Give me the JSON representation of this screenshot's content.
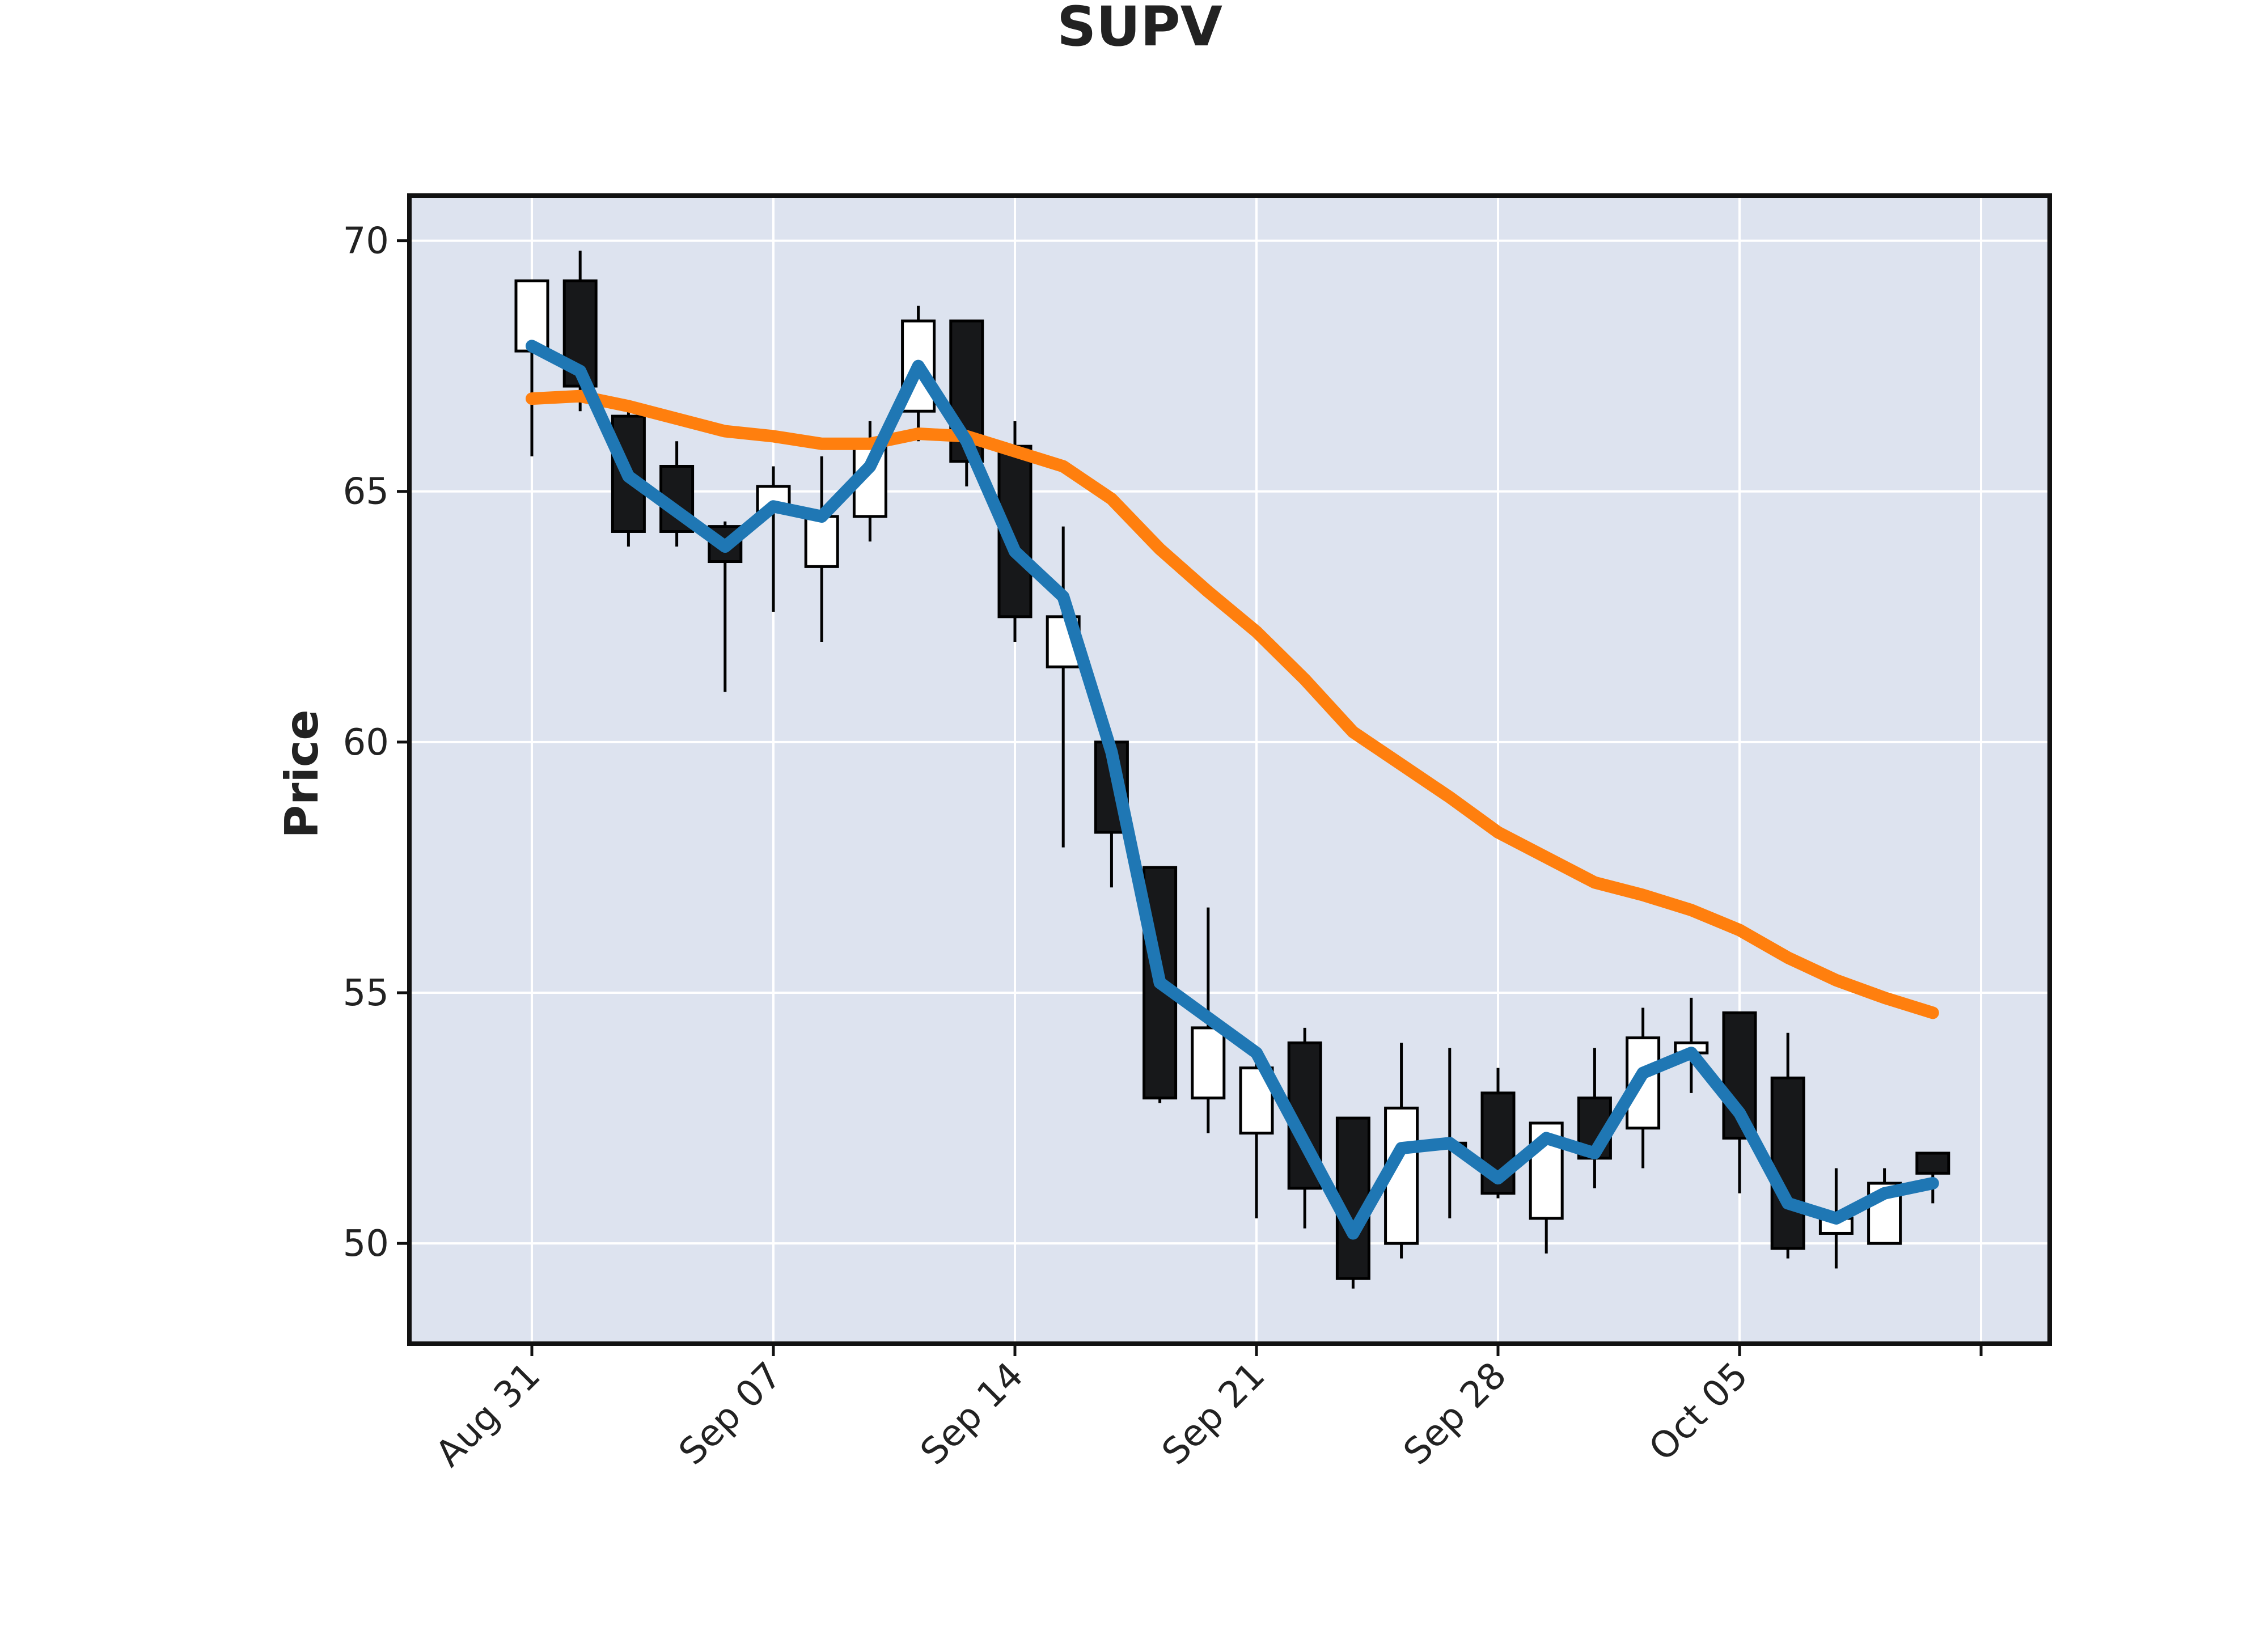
{
  "chart_data": {
    "type": "candlestick",
    "title": "SUPV",
    "ylabel": "Price",
    "xlabel": "",
    "ylim": [
      48.0,
      70.9
    ],
    "yticks": [
      50,
      55,
      60,
      65,
      70
    ],
    "grid": true,
    "legend": "none",
    "xtick_labels": [
      {
        "index": 0,
        "label": "Aug 31"
      },
      {
        "index": 5,
        "label": "Sep 07"
      },
      {
        "index": 10,
        "label": "Sep 14"
      },
      {
        "index": 15,
        "label": "Sep 21"
      },
      {
        "index": 20,
        "label": "Sep 28"
      },
      {
        "index": 25,
        "label": "Oct 05"
      },
      {
        "index": 30,
        "label": ""
      }
    ],
    "candles": [
      {
        "date": "Aug 31",
        "open": 67.8,
        "high": 69.2,
        "low": 65.7,
        "close": 69.2
      },
      {
        "date": "Sep 01",
        "open": 69.2,
        "high": 69.8,
        "low": 66.6,
        "close": 67.1
      },
      {
        "date": "Sep 02",
        "open": 66.5,
        "high": 66.7,
        "low": 63.9,
        "close": 64.2
      },
      {
        "date": "Sep 03",
        "open": 65.5,
        "high": 66.0,
        "low": 63.9,
        "close": 64.2
      },
      {
        "date": "Sep 04",
        "open": 64.3,
        "high": 64.4,
        "low": 61.0,
        "close": 63.6
      },
      {
        "date": "Sep 07",
        "open": 64.6,
        "high": 65.5,
        "low": 62.6,
        "close": 65.1
      },
      {
        "date": "Sep 08",
        "open": 63.5,
        "high": 65.7,
        "low": 62.0,
        "close": 64.5
      },
      {
        "date": "Sep 09",
        "open": 64.5,
        "high": 66.4,
        "low": 64.0,
        "close": 66.0
      },
      {
        "date": "Sep 10",
        "open": 66.6,
        "high": 68.7,
        "low": 66.0,
        "close": 68.4
      },
      {
        "date": "Sep 11",
        "open": 68.4,
        "high": 68.4,
        "low": 65.1,
        "close": 65.6
      },
      {
        "date": "Sep 14",
        "open": 65.9,
        "high": 66.4,
        "low": 62.0,
        "close": 62.5
      },
      {
        "date": "Sep 15",
        "open": 61.5,
        "high": 64.3,
        "low": 57.9,
        "close": 62.5
      },
      {
        "date": "Sep 16",
        "open": 60.0,
        "high": 60.0,
        "low": 57.1,
        "close": 58.2
      },
      {
        "date": "Sep 17",
        "open": 57.5,
        "high": 57.5,
        "low": 52.8,
        "close": 52.9
      },
      {
        "date": "Sep 18",
        "open": 52.9,
        "high": 56.7,
        "low": 52.2,
        "close": 54.3
      },
      {
        "date": "Sep 21",
        "open": 52.2,
        "high": 53.6,
        "low": 50.5,
        "close": 53.5
      },
      {
        "date": "Sep 22",
        "open": 54.0,
        "high": 54.3,
        "low": 50.3,
        "close": 51.1
      },
      {
        "date": "Sep 23",
        "open": 52.5,
        "high": 52.5,
        "low": 49.1,
        "close": 49.3
      },
      {
        "date": "Sep 24",
        "open": 50.0,
        "high": 54.0,
        "low": 49.7,
        "close": 52.7
      },
      {
        "date": "Sep 25",
        "open": 52.0,
        "high": 53.9,
        "low": 50.5,
        "close": 51.9
      },
      {
        "date": "Sep 28",
        "open": 53.0,
        "high": 53.5,
        "low": 50.9,
        "close": 51.0
      },
      {
        "date": "Sep 29",
        "open": 50.5,
        "high": 52.4,
        "low": 49.8,
        "close": 52.4
      },
      {
        "date": "Sep 30",
        "open": 52.9,
        "high": 53.9,
        "low": 51.1,
        "close": 51.7
      },
      {
        "date": "Oct 01",
        "open": 52.3,
        "high": 54.7,
        "low": 51.5,
        "close": 54.1
      },
      {
        "date": "Oct 02",
        "open": 53.8,
        "high": 54.9,
        "low": 53.0,
        "close": 54.0
      },
      {
        "date": "Oct 05",
        "open": 54.6,
        "high": 54.6,
        "low": 51.0,
        "close": 52.1
      },
      {
        "date": "Oct 06",
        "open": 53.3,
        "high": 54.2,
        "low": 49.7,
        "close": 49.9
      },
      {
        "date": "Oct 07",
        "open": 50.2,
        "high": 51.5,
        "low": 49.5,
        "close": 50.5
      },
      {
        "date": "Oct 08",
        "open": 50.0,
        "high": 51.5,
        "low": 50.0,
        "close": 51.2
      },
      {
        "date": "Oct 09",
        "open": 51.8,
        "high": 51.8,
        "low": 50.8,
        "close": 51.4
      }
    ],
    "series": [
      {
        "color": "#1f77b4",
        "values": [
          67.9,
          67.4,
          65.3,
          64.6,
          63.9,
          64.7,
          64.5,
          65.5,
          67.5,
          66.0,
          63.8,
          62.9,
          59.8,
          55.2,
          54.5,
          53.8,
          52.0,
          50.2,
          51.9,
          52.0,
          51.3,
          52.1,
          51.8,
          53.4,
          53.8,
          52.6,
          50.8,
          50.5,
          51.0,
          51.2
        ]
      },
      {
        "color": "#ff7f0e",
        "values": [
          66.85,
          66.9,
          66.7,
          66.45,
          66.2,
          66.1,
          65.95,
          65.95,
          66.15,
          66.1,
          65.8,
          65.5,
          64.85,
          63.85,
          63.0,
          62.2,
          61.25,
          60.2,
          59.55,
          58.9,
          58.2,
          57.7,
          57.2,
          56.95,
          56.65,
          56.25,
          55.7,
          55.25,
          54.9,
          54.6
        ]
      }
    ],
    "colors": {
      "background": "#ffffff",
      "plot_bg": "#dde3ef",
      "grid": "#ffffff",
      "frame": "#111111",
      "candle_up": "#ffffff",
      "candle_down": "#17181a",
      "candle_edge": "#000000"
    }
  }
}
